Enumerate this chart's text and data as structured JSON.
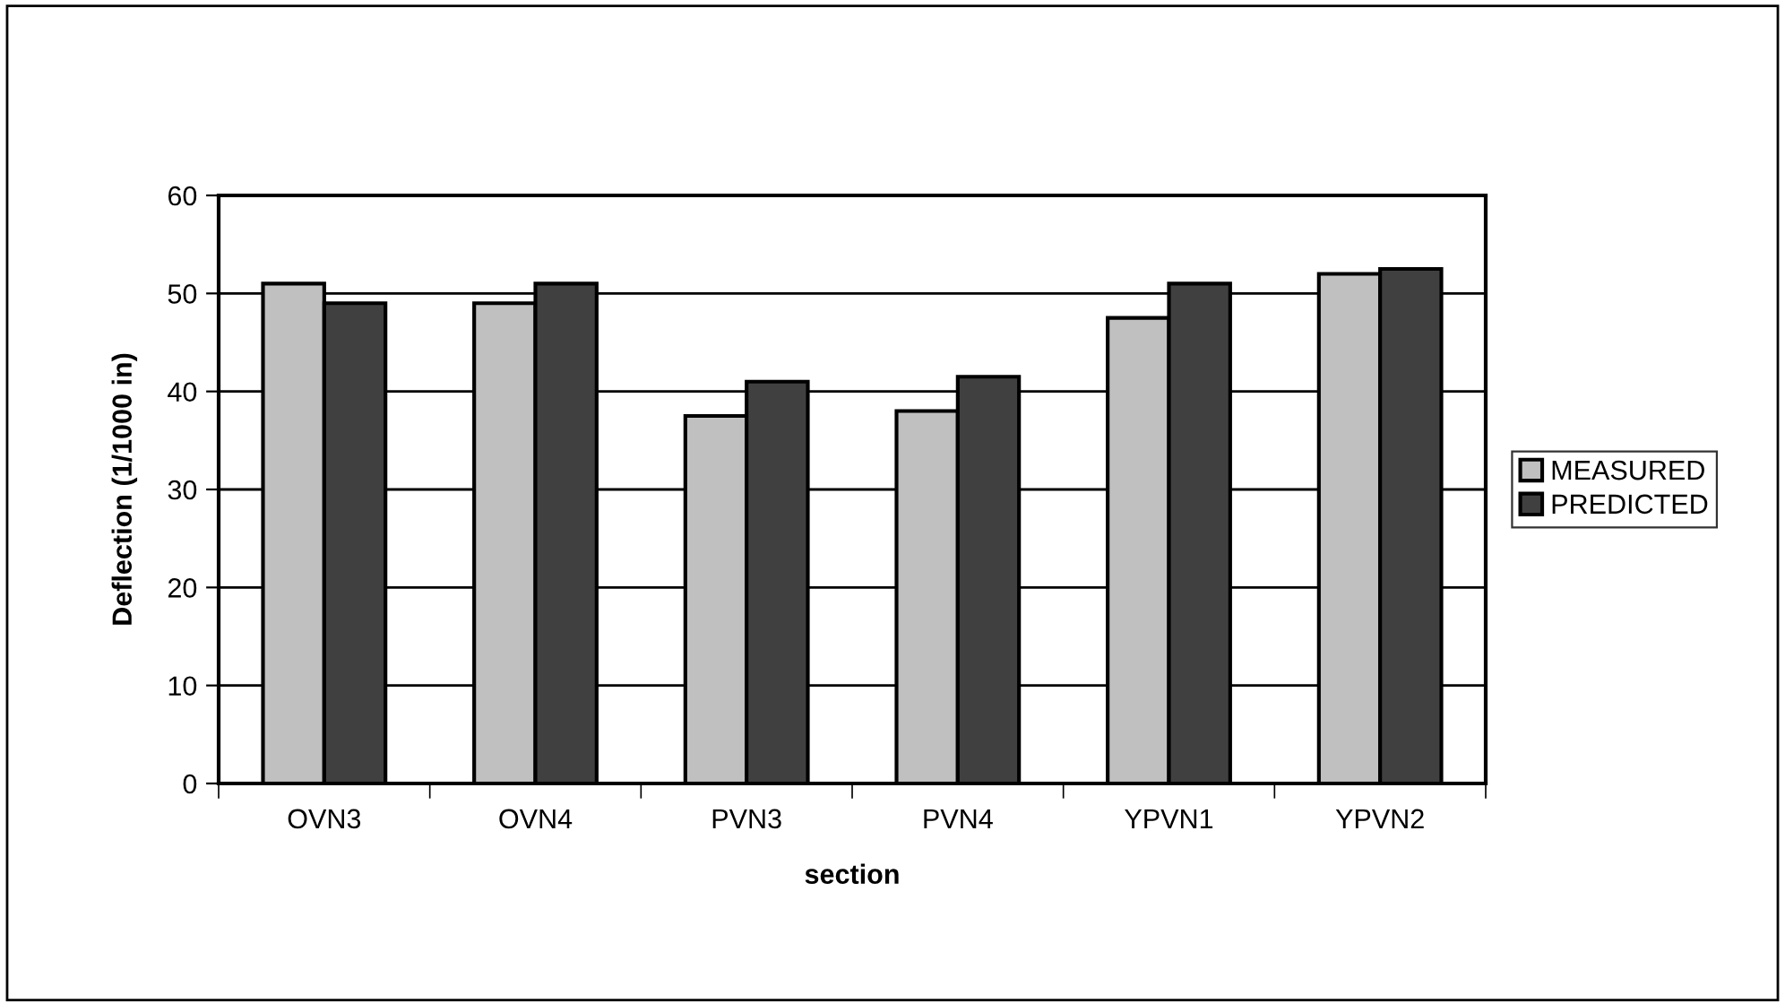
{
  "chart_data": {
    "type": "bar",
    "xlabel": "section",
    "ylabel": "Deflection (1/1000 in)",
    "categories": [
      "OVN3",
      "OVN4",
      "PVN3",
      "PVN4",
      "YPVN1",
      "YPVN2"
    ],
    "series": [
      {
        "name": "MEASURED",
        "color": "#c0c0c0",
        "values": [
          51,
          49,
          37.5,
          38,
          47.5,
          52
        ]
      },
      {
        "name": "PREDICTED",
        "color": "#404040",
        "values": [
          49,
          51,
          41,
          41.5,
          51,
          52.5
        ]
      }
    ],
    "ylim": [
      0,
      60
    ],
    "yticks": [
      0,
      10,
      20,
      30,
      40,
      50,
      60
    ],
    "grid": "y",
    "legend": "right"
  }
}
